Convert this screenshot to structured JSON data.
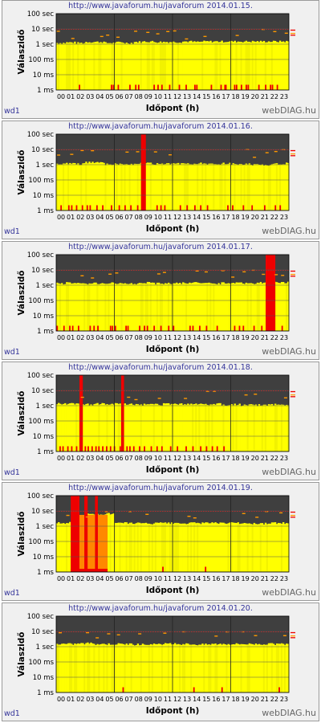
{
  "chart_data": [
    {
      "type": "bar",
      "title": "http://www.javaforum.hu/javaforum  2014.01.15.",
      "xlabel": "Időpont (h)",
      "ylabel": "Válaszidő",
      "x_ticks": [
        "00",
        "01",
        "02",
        "03",
        "04",
        "05",
        "06",
        "07",
        "08",
        "09",
        "10",
        "11",
        "12",
        "13",
        "14",
        "15",
        "16",
        "17",
        "18",
        "19",
        "20",
        "21",
        "22",
        "23"
      ],
      "y_ticks": [
        "1 ms",
        "10 ms",
        "100 ms",
        "1 sec",
        "10 sec",
        "100 sec"
      ],
      "y_scale": "log",
      "ylim_ms": [
        1,
        100000
      ],
      "host_label": "wd1",
      "brand": "webDIAG.hu",
      "baseline_ms": [
        1200,
        1300,
        1200,
        1400,
        1400,
        1200,
        1300,
        1200,
        1400,
        1500,
        1400,
        1400,
        1400,
        1500,
        1400,
        1500,
        1500,
        1500,
        1500,
        1500,
        1500,
        1500,
        1500,
        1500
      ],
      "error_ticks_h": [
        2.4,
        5.7,
        5.9,
        6.4,
        7.6,
        8.2,
        8.5,
        10.1,
        10.5,
        10.9,
        11.7,
        12.7,
        13.4,
        14.3,
        14.5,
        16.0,
        17.0,
        17.4,
        17.5,
        18.4,
        18.6,
        19.1,
        19.6,
        19.8,
        20.9,
        21.6,
        22.1,
        22.3,
        22.8
      ],
      "red_spans_h": [],
      "orange_spans_h": [],
      "max_ms": [
        10000,
        6000,
        9000,
        4000,
        5000,
        7000,
        9000,
        8000,
        9000,
        9000,
        9000,
        9000,
        9000,
        8000,
        8000,
        9000,
        9000,
        9000,
        9000,
        9000,
        9000,
        9000,
        8500,
        9000
      ],
      "colors": {
        "bg": "#3f3f3f",
        "fill": "#ffff00",
        "error": "#ee0000",
        "orange": "#ff8800",
        "maxline": "#cc2222",
        "dash": "#ff9900"
      }
    },
    {
      "type": "bar",
      "title": "http://www.javaforum.hu/javaforum  2014.01.16.",
      "xlabel": "Időpont (h)",
      "ylabel": "Válaszidő",
      "x_ticks": [
        "00",
        "01",
        "02",
        "03",
        "04",
        "05",
        "06",
        "07",
        "08",
        "09",
        "10",
        "11",
        "12",
        "13",
        "14",
        "15",
        "16",
        "17",
        "18",
        "19",
        "20",
        "21",
        "22",
        "23"
      ],
      "y_ticks": [
        "1 ms",
        "10 ms",
        "100 ms",
        "1 sec",
        "10 sec",
        "100 sec"
      ],
      "y_scale": "log",
      "ylim_ms": [
        1,
        100000
      ],
      "host_label": "wd1",
      "brand": "webDIAG.hu",
      "baseline_ms": [
        1100,
        1200,
        1100,
        1400,
        1500,
        1100,
        1100,
        1100,
        1200,
        1200,
        1100,
        1100,
        1200,
        1200,
        1200,
        1100,
        1100,
        1200,
        1100,
        1100,
        1000,
        1000,
        1100,
        1200
      ],
      "error_ticks_h": [
        0.5,
        1.3,
        1.6,
        2.1,
        2.7,
        3.2,
        3.5,
        4.2,
        4.8,
        5.7,
        6.5,
        7.1,
        7.7,
        8.4,
        10.4,
        10.8,
        11.2,
        12.8,
        13.5,
        14.3,
        14.9,
        15.6,
        17.7,
        18.2,
        19.3,
        20.2,
        21.5,
        22.6,
        23.1
      ],
      "red_spans_h": [
        [
          8.75,
          9.25
        ]
      ],
      "orange_spans_h": [],
      "max_ms": [
        9000,
        8000,
        9000,
        8000,
        9000,
        9000,
        9000,
        9000,
        9000,
        20000,
        9000,
        9000,
        9000,
        9000,
        9000,
        9000,
        9000,
        9000,
        9000,
        9000,
        9000,
        9000,
        9000,
        9000
      ],
      "colors": {
        "bg": "#3f3f3f",
        "fill": "#ffff00",
        "error": "#ee0000",
        "orange": "#ff8800",
        "maxline": "#cc2222",
        "dash": "#ff9900"
      }
    },
    {
      "type": "bar",
      "title": "http://www.javaforum.hu/javaforum  2014.01.17.",
      "xlabel": "Időpont (h)",
      "ylabel": "Válaszidő",
      "x_ticks": [
        "00",
        "01",
        "02",
        "03",
        "04",
        "05",
        "06",
        "07",
        "08",
        "09",
        "10",
        "11",
        "12",
        "13",
        "14",
        "15",
        "16",
        "17",
        "18",
        "19",
        "20",
        "21",
        "22",
        "23"
      ],
      "y_ticks": [
        "1 ms",
        "10 ms",
        "100 ms",
        "1 sec",
        "10 sec",
        "100 sec"
      ],
      "y_scale": "log",
      "ylim_ms": [
        1,
        100000
      ],
      "host_label": "wd1",
      "brand": "webDIAG.hu",
      "baseline_ms": [
        1300,
        1400,
        1300,
        1300,
        1300,
        1400,
        1300,
        1300,
        1300,
        1500,
        1300,
        1300,
        1300,
        1400,
        1400,
        1300,
        1300,
        1400,
        1400,
        1400,
        1300,
        1500,
        1500,
        1500
      ],
      "error_ticks_h": [
        0.1,
        0.8,
        1.4,
        1.7,
        2.3,
        3.5,
        3.9,
        4.3,
        5.6,
        5.8,
        6.1,
        7.2,
        7.4,
        8.6,
        9.1,
        9.4,
        10.1,
        10.8,
        11.6,
        12.1,
        13.8,
        14.1,
        14.8,
        15.5,
        16.6,
        18.4,
        18.9,
        19.3,
        20.4,
        21.2,
        23.3
      ],
      "red_spans_h": [
        [
          21.6,
          22.6
        ]
      ],
      "orange_spans_h": [],
      "max_ms": [
        9000,
        9000,
        9000,
        9000,
        9000,
        9000,
        9000,
        9000,
        9000,
        9000,
        9000,
        9000,
        9000,
        9000,
        9000,
        9000,
        9000,
        9000,
        9000,
        9000,
        9000,
        9000,
        60000,
        9000
      ],
      "colors": {
        "bg": "#3f3f3f",
        "fill": "#ffff00",
        "error": "#ee0000",
        "orange": "#ff8800",
        "maxline": "#cc2222",
        "dash": "#ff9900"
      }
    },
    {
      "type": "bar",
      "title": "http://www.javaforum.hu/javaforum  2014.01.18.",
      "xlabel": "Időpont (h)",
      "ylabel": "Válaszidő",
      "x_ticks": [
        "00",
        "01",
        "02",
        "03",
        "04",
        "05",
        "06",
        "07",
        "08",
        "09",
        "10",
        "11",
        "12",
        "13",
        "14",
        "15",
        "16",
        "17",
        "18",
        "19",
        "20",
        "21",
        "22",
        "23"
      ],
      "y_ticks": [
        "1 ms",
        "10 ms",
        "100 ms",
        "1 sec",
        "10 sec",
        "100 sec"
      ],
      "y_scale": "log",
      "ylim_ms": [
        1,
        100000
      ],
      "host_label": "wd1",
      "brand": "webDIAG.hu",
      "baseline_ms": [
        1400,
        1300,
        1300,
        1200,
        1300,
        1300,
        1300,
        1300,
        1200,
        1200,
        1200,
        1300,
        1300,
        1300,
        1300,
        1200,
        1300,
        1100,
        1200,
        1100,
        1100,
        1100,
        1200,
        1200
      ],
      "error_ticks_h": [
        0.4,
        0.7,
        1.2,
        1.6,
        2.1,
        2.5,
        3.0,
        3.3,
        3.7,
        4.1,
        4.4,
        4.8,
        5.2,
        5.6,
        6.0,
        6.6,
        7.3,
        7.6,
        8.0,
        8.6,
        9.1,
        9.8,
        10.4,
        10.9,
        11.8,
        12.5,
        13.4,
        14.1,
        14.9,
        15.5,
        16.1,
        16.6,
        17.3
      ],
      "red_spans_h": [
        [
          2.4,
          2.75
        ],
        [
          6.7,
          7.0
        ]
      ],
      "orange_spans_h": [],
      "max_ms": [
        9000,
        9000,
        9000,
        9000,
        9000,
        9000,
        9000,
        9000,
        9000,
        9000,
        9000,
        9000,
        9000,
        9000,
        9000,
        9000,
        9000,
        9000,
        9000,
        9000,
        9000,
        9000,
        9000,
        9000
      ],
      "colors": {
        "bg": "#3f3f3f",
        "fill": "#ffff00",
        "error": "#ee0000",
        "orange": "#ff8800",
        "maxline": "#cc2222",
        "dash": "#ff9900"
      }
    },
    {
      "type": "bar",
      "title": "http://www.javaforum.hu/javaforum  2014.01.19.",
      "xlabel": "Időpont (h)",
      "ylabel": "Válaszidő",
      "x_ticks": [
        "00",
        "01",
        "02",
        "03",
        "04",
        "05",
        "06",
        "07",
        "08",
        "09",
        "10",
        "11",
        "12",
        "13",
        "14",
        "15",
        "16",
        "17",
        "18",
        "19",
        "20",
        "21",
        "22",
        "23"
      ],
      "y_ticks": [
        "1 ms",
        "10 ms",
        "100 ms",
        "1 sec",
        "10 sec",
        "100 sec"
      ],
      "y_scale": "log",
      "ylim_ms": [
        1,
        100000
      ],
      "host_label": "wd1",
      "brand": "webDIAG.hu",
      "baseline_ms": [
        1600,
        1700,
        5000,
        6000,
        6000,
        6500,
        1600,
        1600,
        1600,
        1500,
        1600,
        1600,
        1500,
        1600,
        1600,
        1600,
        1600,
        1600,
        1600,
        1600,
        1500,
        1500,
        1600,
        1600
      ],
      "error_ticks_h": [
        11.0,
        15.4
      ],
      "red_spans_h": [
        [
          1.5,
          2.4
        ],
        [
          2.9,
          3.25
        ],
        [
          4.0,
          4.3
        ],
        [
          1.5,
          5.3
        ]
      ],
      "orange_spans_h": [
        [
          2.4,
          2.9
        ],
        [
          3.25,
          4.0
        ],
        [
          4.3,
          5.3
        ]
      ],
      "max_ms": [
        9000,
        9000,
        90000,
        90000,
        90000,
        90000,
        9000,
        9000,
        9000,
        9000,
        9000,
        9000,
        9000,
        9000,
        9000,
        9000,
        9000,
        9000,
        9000,
        9000,
        9000,
        9000,
        9000,
        9000
      ],
      "colors": {
        "bg": "#3f3f3f",
        "fill": "#ffff00",
        "error": "#ee0000",
        "orange": "#ff8800",
        "maxline": "#cc2222",
        "dash": "#ff9900"
      }
    },
    {
      "type": "bar",
      "title": "http://www.javaforum.hu/javaforum  2014.01.20.",
      "xlabel": "Időpont (h)",
      "ylabel": "Válaszidő",
      "x_ticks": [
        "00",
        "01",
        "02",
        "03",
        "04",
        "05",
        "06",
        "07",
        "08",
        "09",
        "10",
        "11",
        "12",
        "13",
        "14",
        "15",
        "16",
        "17",
        "18",
        "19",
        "20",
        "21",
        "22",
        "23"
      ],
      "y_ticks": [
        "1 ms",
        "10 ms",
        "100 ms",
        "1 sec",
        "10 sec",
        "100 sec"
      ],
      "y_scale": "log",
      "ylim_ms": [
        1,
        100000
      ],
      "host_label": "wd1",
      "brand": "webDIAG.hu",
      "baseline_ms": [
        1500,
        1500,
        1600,
        1700,
        1500,
        1500,
        1500,
        1500,
        1400,
        1400,
        1400,
        1500,
        1500,
        1500,
        1400,
        1400,
        1500,
        1500,
        1500,
        1500,
        1500,
        1500,
        1500,
        1500
      ],
      "error_ticks_h": [
        6.9,
        14.2,
        17.1,
        23.0
      ],
      "red_spans_h": [],
      "orange_spans_h": [],
      "max_ms": [
        9000,
        9000,
        9000,
        9000,
        9000,
        9000,
        9000,
        9000,
        9000,
        9000,
        9000,
        9000,
        9000,
        9000,
        9000,
        9000,
        9000,
        9000,
        9000,
        9000,
        9000,
        9000,
        9000,
        9000
      ],
      "colors": {
        "bg": "#3f3f3f",
        "fill": "#ffff00",
        "error": "#ee0000",
        "orange": "#ff8800",
        "maxline": "#cc2222",
        "dash": "#ff9900"
      }
    }
  ]
}
